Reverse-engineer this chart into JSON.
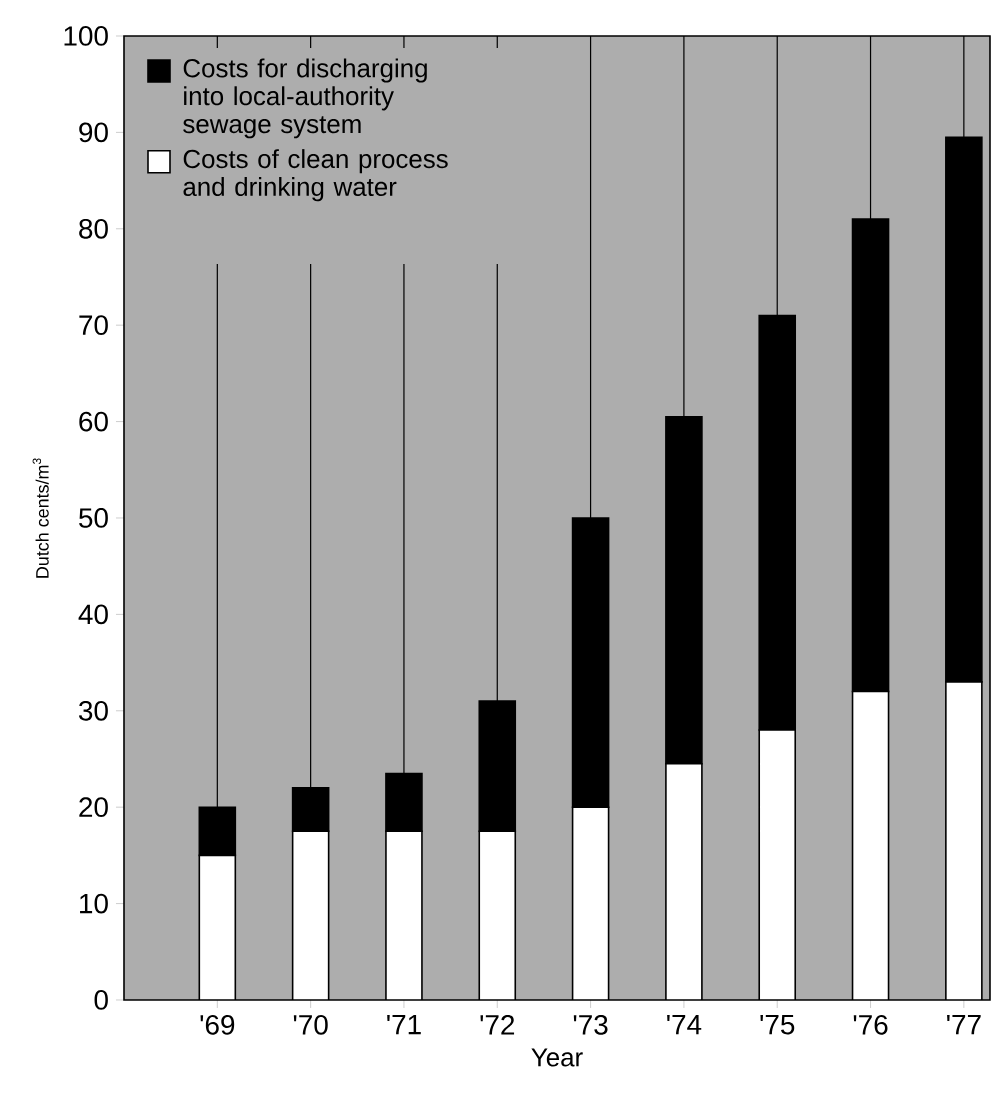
{
  "chart_data": {
    "type": "bar",
    "stacked": true,
    "xlabel": "Year",
    "ylabel": "Dutch cents/m$^{3}$",
    "categories": [
      "'69",
      "'70",
      "'71",
      "'72",
      "'73",
      "'74",
      "'75",
      "'76",
      "'77"
    ],
    "series": [
      {
        "name": "Costs of clean process and drinking water",
        "color": "#ffffff",
        "values": [
          15,
          17.5,
          17.5,
          17.5,
          20,
          24.5,
          28,
          32,
          33
        ]
      },
      {
        "name": "Costs for discharging into local-authority sewage system",
        "color": "#000000",
        "values": [
          5,
          4.5,
          6,
          13.5,
          30,
          36,
          43,
          49,
          56.5
        ]
      }
    ],
    "ylim": [
      0,
      100
    ],
    "yticks": [
      0,
      10,
      20,
      30,
      40,
      50,
      60,
      70,
      80,
      90,
      100
    ],
    "grid": "x",
    "legend": "top left"
  }
}
